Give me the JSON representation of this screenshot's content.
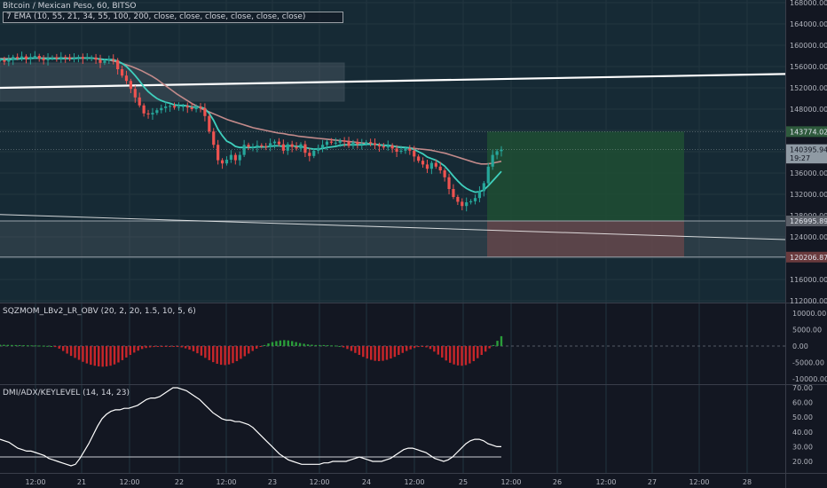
{
  "header": {
    "symbol": "Bitcoin / Mexican Peso, 60, BITSO",
    "ema_legend": "7 EMA (10, 55, 21, 34, 55, 100, 200, close, close, close, close, close, close)"
  },
  "panes": {
    "sqz": {
      "title": "SQZMOM_LBv2_LR_OBV (20, 2, 20, 1.5, 10, 5, 6)"
    },
    "dmi": {
      "title": "DMI/ADX/KEYLEVEL (14, 14, 23)"
    }
  },
  "colors": {
    "background": "#131722",
    "price_pane": "#162a35",
    "up_candle": "#26a69a",
    "down_candle": "#ef5350",
    "ema_fast": "#3fcfbd",
    "ema_slow": "#c28a8a",
    "profit_zone": "#1e4d32",
    "loss_zone": "#5a3639",
    "momentum_pos": "#2a9d3a",
    "momentum_neg": "#c8262a"
  },
  "price_axis": {
    "ticks": [
      "168000.00",
      "164000.00",
      "160000.00",
      "156000.00",
      "152000.00",
      "148000.00",
      "136000.00",
      "132000.00",
      "128000.00",
      "124000.00",
      "116000.00",
      "112000.00"
    ],
    "labels": {
      "target": "143774.02",
      "last": "140395.94",
      "countdown": "19:27",
      "entry": "126995.89",
      "stop": "120206.87"
    }
  },
  "sqz_axis": {
    "ticks": [
      "10000.00",
      "5000.00",
      "0.00",
      "-5000.00",
      "-10000.00"
    ]
  },
  "dmi_axis": {
    "ticks": [
      "70.00",
      "60.00",
      "50.00",
      "40.00",
      "30.00",
      "20.00"
    ]
  },
  "time_axis": {
    "labels": [
      "12:00",
      "21",
      "12:00",
      "22",
      "12:00",
      "23",
      "12:00",
      "24",
      "12:00",
      "25",
      "12:00",
      "26",
      "12:00",
      "27",
      "12:00",
      "28"
    ]
  },
  "chart_data": {
    "type": "candlestick",
    "title": "Bitcoin / Mexican Peso, 60, BITSO",
    "ylim": [
      112000,
      170000
    ],
    "x_labels": [
      "12:00",
      "21",
      "12:00",
      "22",
      "12:00",
      "23",
      "12:00",
      "24",
      "12:00",
      "25",
      "12:00",
      "26",
      "12:00",
      "27",
      "12:00",
      "28"
    ],
    "close_series": [
      157200,
      156900,
      157300,
      157800,
      157600,
      157900,
      157400,
      157800,
      158000,
      157500,
      157200,
      157600,
      157700,
      157500,
      157800,
      157700,
      157400,
      157600,
      157800,
      157500,
      157600,
      157700,
      157300,
      156700,
      157100,
      157400,
      157200,
      155500,
      154300,
      153300,
      151800,
      150200,
      148700,
      147200,
      147000,
      147300,
      147800,
      148200,
      148500,
      148600,
      148300,
      148400,
      148600,
      148300,
      148000,
      148500,
      148200,
      146700,
      143800,
      141300,
      138400,
      137800,
      138500,
      139400,
      138400,
      139400,
      141300,
      140900,
      140900,
      141200,
      141000,
      140900,
      141600,
      141900,
      141400,
      140200,
      141400,
      140900,
      140600,
      141400,
      139800,
      139200,
      140200,
      140700,
      141300,
      141900,
      141700,
      141700,
      142100,
      141900,
      141100,
      141800,
      141400,
      141500,
      141800,
      141600,
      141300,
      141000,
      140800,
      141200,
      140600,
      140000,
      140200,
      140600,
      140200,
      139100,
      138300,
      137600,
      136800,
      137900,
      137200,
      136500,
      135200,
      133000,
      131500,
      130600,
      129800,
      130500,
      130700,
      131300,
      132600,
      134100,
      137200,
      139400,
      140100,
      140400
    ],
    "ema_fast": [
      157400,
      157300,
      157300,
      157400,
      157400,
      157500,
      157500,
      157500,
      157600,
      157600,
      157500,
      157500,
      157500,
      157500,
      157500,
      157500,
      157500,
      157500,
      157600,
      157600,
      157600,
      157600,
      157500,
      157400,
      157300,
      157300,
      157300,
      157000,
      156600,
      156000,
      155200,
      154300,
      153300,
      152200,
      151300,
      150600,
      150000,
      149600,
      149300,
      149100,
      148800,
      148700,
      148700,
      148600,
      148400,
      148400,
      148400,
      148100,
      147200,
      145900,
      144200,
      143000,
      142000,
      141600,
      141000,
      140800,
      140800,
      140800,
      140800,
      140900,
      140900,
      140900,
      141000,
      141100,
      141100,
      141000,
      141100,
      141100,
      141000,
      141000,
      140800,
      140600,
      140500,
      140500,
      140600,
      140800,
      140900,
      141000,
      141200,
      141300,
      141300,
      141300,
      141300,
      141300,
      141400,
      141400,
      141400,
      141300,
      141200,
      141200,
      141100,
      140900,
      140800,
      140800,
      140700,
      140400,
      140000,
      139600,
      139000,
      138700,
      138400,
      137900,
      137300,
      136400,
      135400,
      134500,
      133700,
      133100,
      132700,
      132400,
      132500,
      132800,
      133600,
      134500,
      135400,
      136300
    ],
    "ema_slow": [
      157500,
      157500,
      157500,
      157500,
      157500,
      157600,
      157600,
      157600,
      157600,
      157600,
      157600,
      157600,
      157600,
      157600,
      157600,
      157600,
      157600,
      157600,
      157600,
      157500,
      157400,
      157300,
      157100,
      156900,
      156600,
      156300,
      156000,
      155600,
      155200,
      154700,
      154200,
      153600,
      152900,
      152200,
      151500,
      150800,
      150200,
      149600,
      149000,
      148500,
      148000,
      147600,
      147200,
      146800,
      146400,
      146000,
      145700,
      145400,
      145100,
      144800,
      144500,
      144300,
      144100,
      143900,
      143700,
      143500,
      143400,
      143200,
      143100,
      142900,
      142800,
      142700,
      142600,
      142500,
      142400,
      142300,
      142200,
      142100,
      142000,
      141900,
      141800,
      141700,
      141600,
      141500,
      141400,
      141300,
      141200,
      141100,
      141000,
      140900,
      140800,
      140700,
      140600,
      140500,
      140400,
      140300,
      140100,
      139900,
      139700,
      139400,
      139100,
      138800,
      138500,
      138200,
      137900,
      137700,
      137700,
      137800,
      138000,
      138200
    ],
    "trendlines": [
      {
        "from": [
          0,
          152000
        ],
        "to": [
          1,
          154600
        ]
      },
      {
        "from": [
          0,
          128200
        ],
        "to": [
          1,
          123500
        ]
      }
    ],
    "position": {
      "target": 143774.02,
      "entry": 126995.89,
      "stop": 120206.87
    },
    "momentum": [
      400,
      380,
      350,
      320,
      300,
      280,
      250,
      220,
      200,
      180,
      150,
      100,
      50,
      0,
      -300,
      -800,
      -1500,
      -2300,
      -3000,
      -3600,
      -4200,
      -4800,
      -5300,
      -5700,
      -6000,
      -6200,
      -6300,
      -6200,
      -6000,
      -5600,
      -5000,
      -4300,
      -3500,
      -2700,
      -2000,
      -1400,
      -900,
      -600,
      -400,
      -300,
      -200,
      -100,
      -50,
      -50,
      -100,
      -200,
      -400,
      -700,
      -1100,
      -1600,
      -2200,
      -2900,
      -3600,
      -4300,
      -4900,
      -5400,
      -5700,
      -5800,
      -5600,
      -5200,
      -4600,
      -3900,
      -3100,
      -2300,
      -1500,
      -800,
      -200,
      300,
      800,
      1200,
      1500,
      1700,
      1800,
      1700,
      1500,
      1200,
      900,
      700,
      500,
      400,
      300,
      300,
      300,
      250,
      200,
      150,
      0,
      -400,
      -900,
      -1500,
      -2100,
      -2700,
      -3300,
      -3800,
      -4200,
      -4500,
      -4600,
      -4500,
      -4200,
      -3800,
      -3300,
      -2700,
      -2100,
      -1500,
      -1000,
      -600,
      -300,
      -200,
      -400,
      -900,
      -1700,
      -2600,
      -3500,
      -4400,
      -5100,
      -5600,
      -5900,
      -6000,
      -5800,
      -5300,
      -4600,
      -3700,
      -2700,
      -1700,
      -700,
      300,
      1600,
      3000
    ],
    "adx": [
      35,
      34,
      33,
      31,
      29,
      28,
      27,
      27,
      26,
      25,
      24,
      22,
      21,
      20,
      19,
      18,
      17,
      18,
      22,
      27,
      32,
      38,
      44,
      49,
      52,
      54,
      55,
      55,
      56,
      56,
      57,
      58,
      60,
      62,
      63,
      63,
      64,
      66,
      68,
      70,
      70,
      69,
      68,
      66,
      64,
      62,
      59,
      56,
      53,
      51,
      49,
      48,
      48,
      47,
      47,
      46,
      45,
      43,
      40,
      37,
      34,
      31,
      28,
      25,
      23,
      21,
      20,
      19,
      18,
      18,
      18,
      18,
      18,
      19,
      19,
      20,
      20,
      20,
      20,
      21,
      22,
      23,
      22,
      21,
      20,
      20,
      20,
      21,
      22,
      24,
      26,
      28,
      29,
      29,
      28,
      27,
      26,
      24,
      22,
      21,
      20,
      21,
      23,
      26,
      29,
      32,
      34,
      35,
      35,
      34,
      32,
      31,
      30,
      30
    ],
    "adx_keylevel": 23
  }
}
